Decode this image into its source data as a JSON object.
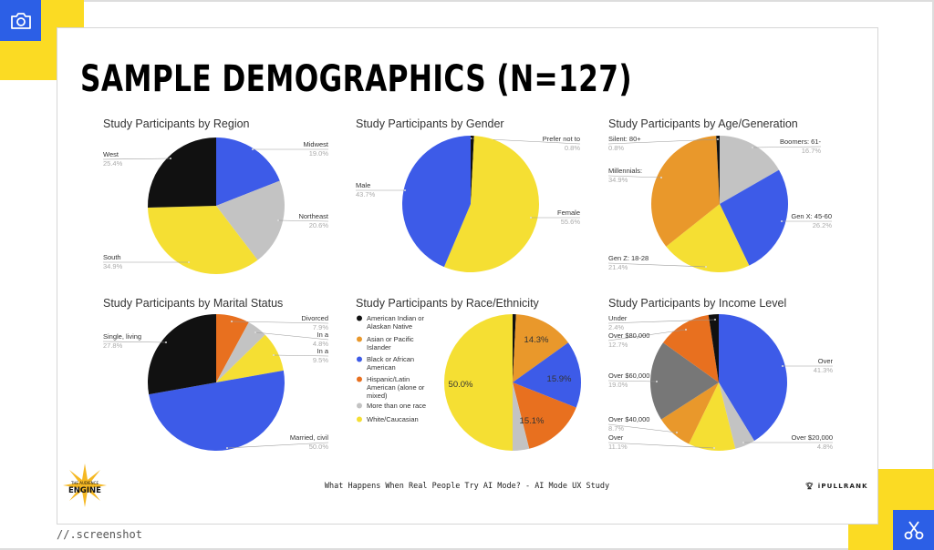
{
  "header": {
    "title": "SAMPLE DEMOGRAPHICS (N=127)"
  },
  "footer": {
    "text": "What Happens When Real People Try AI Mode? - AI Mode UX Study",
    "logo_left": "THE AUDIENCE ENGINE",
    "logo_right": "iPULLRANK"
  },
  "caption": "//.screenshot",
  "icons": {
    "top_left": "camera-icon",
    "bottom_right": "scissors-icon"
  },
  "colors": {
    "black": "#111111",
    "blue": "#3d5be8",
    "gray": "#c3c3c3",
    "yellow": "#f5df33",
    "orange": "#e9982b",
    "orange_red": "#e8701f",
    "dark_gray": "#777777",
    "accent_yellow": "#fbdb23",
    "accent_blue": "#2c5fe6"
  },
  "chart_data": [
    {
      "type": "pie",
      "title": "Study Participants by Region",
      "slices": [
        {
          "label": "Midwest",
          "value": 19.0,
          "pct": "19.0%",
          "color": "#3d5be8"
        },
        {
          "label": "Northeast",
          "value": 20.6,
          "pct": "20.6%",
          "color": "#c3c3c3"
        },
        {
          "label": "South",
          "value": 34.9,
          "pct": "34.9%",
          "color": "#f5df33"
        },
        {
          "label": "West",
          "value": 25.4,
          "pct": "25.4%",
          "color": "#111111"
        }
      ]
    },
    {
      "type": "pie",
      "title": "Study Participants by Gender",
      "slices": [
        {
          "label": "Prefer not to",
          "value": 0.8,
          "pct": "0.8%",
          "color": "#111111"
        },
        {
          "label": "Female",
          "value": 55.6,
          "pct": "55.6%",
          "color": "#f5df33"
        },
        {
          "label": "Male",
          "value": 43.7,
          "pct": "43.7%",
          "color": "#3d5be8"
        }
      ]
    },
    {
      "type": "pie",
      "title": "Study Participants by Age/Generation",
      "slices": [
        {
          "label": "Boomers: 61-",
          "value": 16.7,
          "pct": "16.7%",
          "color": "#c3c3c3"
        },
        {
          "label": "Gen X: 45-60",
          "value": 26.2,
          "pct": "26.2%",
          "color": "#3d5be8"
        },
        {
          "label": "Gen Z: 18-28",
          "value": 21.4,
          "pct": "21.4%",
          "color": "#f5df33"
        },
        {
          "label": "Millennials:",
          "value": 34.9,
          "pct": "34.9%",
          "color": "#e9982b"
        },
        {
          "label": "Silent: 80+",
          "value": 0.8,
          "pct": "0.8%",
          "color": "#111111"
        }
      ]
    },
    {
      "type": "pie",
      "title": "Study Participants by Marital Status",
      "slices": [
        {
          "label": "Divorced",
          "value": 7.9,
          "pct": "7.9%",
          "color": "#e8701f"
        },
        {
          "label": "In a",
          "value": 4.8,
          "pct": "4.8%",
          "color": "#c3c3c3"
        },
        {
          "label": "In a",
          "value": 9.5,
          "pct": "9.5%",
          "color": "#f5df33"
        },
        {
          "label": "Married, civil",
          "value": 50.0,
          "pct": "50.0%",
          "color": "#3d5be8"
        },
        {
          "label": "Single, living",
          "value": 27.8,
          "pct": "27.8%",
          "color": "#111111"
        }
      ]
    },
    {
      "type": "pie",
      "title": "Study Participants by Race/Ethnicity",
      "legend": "left",
      "slices": [
        {
          "label": "American Indian or Alaskan Native",
          "value": 0.8,
          "pct": "",
          "color": "#111111"
        },
        {
          "label": "Asian or Pacific Islander",
          "value": 14.3,
          "pct": "14.3%",
          "color": "#e9982b"
        },
        {
          "label": "Black or African American",
          "value": 15.9,
          "pct": "15.9%",
          "color": "#3d5be8"
        },
        {
          "label": "Hispanic/Latin American (alone or mixed)",
          "value": 15.1,
          "pct": "15.1%",
          "color": "#e8701f"
        },
        {
          "label": "More than one race",
          "value": 3.9,
          "pct": "",
          "color": "#c3c3c3"
        },
        {
          "label": "White/Caucasian",
          "value": 50.0,
          "pct": "50.0%",
          "color": "#f5df33"
        }
      ]
    },
    {
      "type": "pie",
      "title": "Study Participants by Income Level",
      "slices": [
        {
          "label": "Over",
          "value": 41.3,
          "pct": "41.3%",
          "color": "#3d5be8"
        },
        {
          "label": "Over $20,000",
          "value": 4.8,
          "pct": "4.8%",
          "color": "#c3c3c3"
        },
        {
          "label": "Over",
          "value": 11.1,
          "pct": "11.1%",
          "color": "#f5df33"
        },
        {
          "label": "Over $40,000",
          "value": 8.7,
          "pct": "8.7%",
          "color": "#e9982b"
        },
        {
          "label": "Over $60,000",
          "value": 19.0,
          "pct": "19.0%",
          "color": "#777777"
        },
        {
          "label": "Over $80,000",
          "value": 12.7,
          "pct": "12.7%",
          "color": "#e8701f"
        },
        {
          "label": "Under",
          "value": 2.4,
          "pct": "2.4%",
          "color": "#111111"
        }
      ]
    }
  ]
}
